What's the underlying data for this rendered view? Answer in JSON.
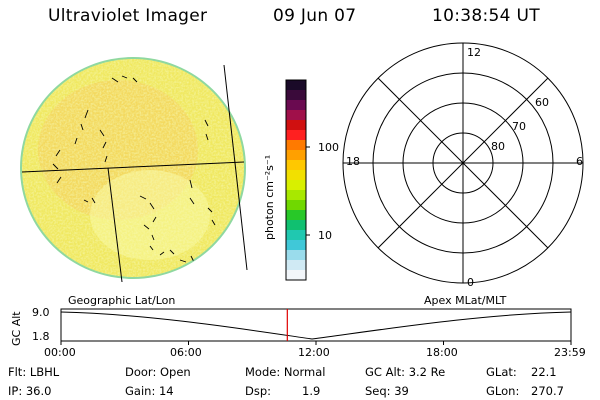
{
  "header": {
    "instrument": "Ultraviolet Imager",
    "date": "09 Jun 07",
    "time": "10:38:54 UT"
  },
  "colorbar": {
    "unit_label": "photon cm⁻²s⁻¹",
    "ticks": [
      "100",
      "10"
    ],
    "colors": [
      "#1a0a28",
      "#3a0a3a",
      "#6a0a50",
      "#a0104a",
      "#d01010",
      "#ff2020",
      "#ff7a00",
      "#ffa000",
      "#ffc800",
      "#f2e000",
      "#d8f000",
      "#a8e800",
      "#70d800",
      "#28c828",
      "#10c070",
      "#20c8b0",
      "#40c8d8",
      "#9adcec",
      "#d0eaf4",
      "#f2f6fa"
    ]
  },
  "polar_plot": {
    "mlt_labels": [
      "12",
      "6",
      "0",
      "18"
    ],
    "lat_labels": [
      "60",
      "70",
      "80"
    ]
  },
  "timeline": {
    "left_label": "Geographic Lat/Lon",
    "right_label": "Apex MLat/MLT",
    "axis_title": "GC Alt",
    "y_ticks": [
      "9.0",
      "1.8"
    ],
    "x_ticks": [
      "00:00",
      "06:00",
      "12:00",
      "18:00",
      "23:59"
    ],
    "marker_time_hours": 10.65
  },
  "info": {
    "flt": "Flt: LBHL",
    "ip": "IP: 36.0",
    "door": "Door: Open",
    "gain": "Gain: 14",
    "mode": "Mode: Normal",
    "dsp": "Dsp:",
    "dsp_val": "1.9",
    "gcalt": "GC Alt: 3.2 Re",
    "seq": "Seq: 39",
    "glat": "GLat:",
    "glat_val": "22.1",
    "glon": "GLon:",
    "glon_val": "270.7"
  }
}
